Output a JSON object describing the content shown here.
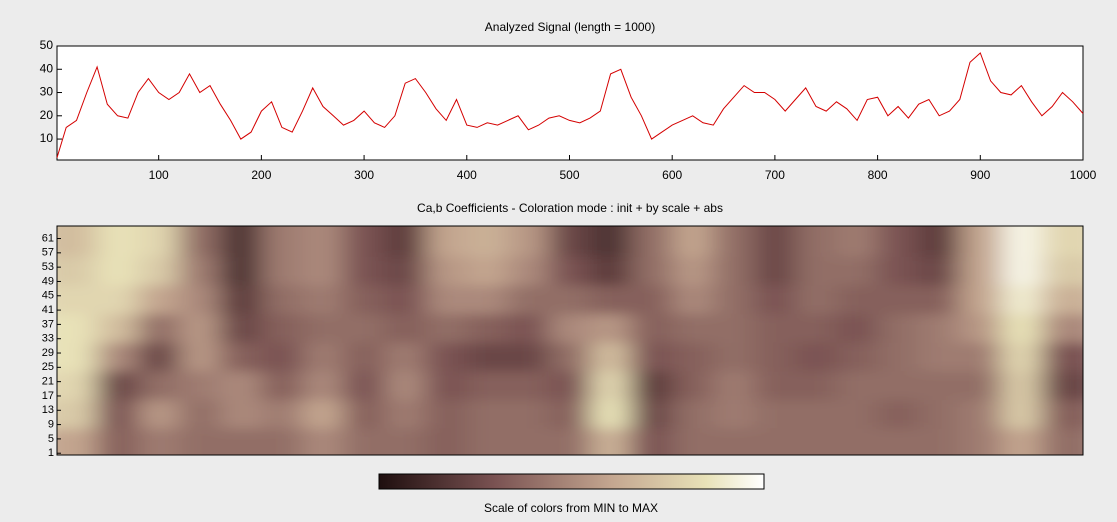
{
  "chart_data": [
    {
      "type": "line",
      "title": "Analyzed Signal  (length = 1000)",
      "x": [
        1,
        10,
        20,
        30,
        40,
        50,
        60,
        70,
        80,
        90,
        100,
        110,
        120,
        130,
        140,
        150,
        160,
        170,
        180,
        190,
        200,
        210,
        220,
        230,
        240,
        250,
        260,
        270,
        280,
        290,
        300,
        310,
        320,
        330,
        340,
        350,
        360,
        370,
        380,
        390,
        400,
        410,
        420,
        430,
        440,
        450,
        460,
        470,
        480,
        490,
        500,
        510,
        520,
        530,
        540,
        550,
        560,
        570,
        580,
        590,
        600,
        610,
        620,
        630,
        640,
        650,
        660,
        670,
        680,
        690,
        700,
        710,
        720,
        730,
        740,
        750,
        760,
        770,
        780,
        790,
        800,
        810,
        820,
        830,
        840,
        850,
        860,
        870,
        880,
        890,
        900,
        910,
        920,
        930,
        940,
        950,
        960,
        970,
        980,
        990,
        1000
      ],
      "series": [
        {
          "name": "Signal",
          "color": "#d40000",
          "values": [
            2,
            15,
            18,
            30,
            41,
            25,
            20,
            19,
            30,
            36,
            30,
            27,
            30,
            38,
            30,
            33,
            25,
            18,
            10,
            13,
            22,
            26,
            15,
            13,
            22,
            32,
            24,
            20,
            16,
            18,
            22,
            17,
            15,
            20,
            34,
            36,
            30,
            23,
            18,
            27,
            16,
            15,
            17,
            16,
            18,
            20,
            14,
            16,
            19,
            20,
            18,
            17,
            19,
            22,
            38,
            40,
            28,
            20,
            10,
            13,
            16,
            18,
            20,
            17,
            16,
            23,
            28,
            33,
            30,
            30,
            27,
            22,
            27,
            32,
            24,
            22,
            26,
            23,
            18,
            27,
            28,
            20,
            24,
            19,
            25,
            27,
            20,
            22,
            27,
            43,
            47,
            35,
            30,
            29,
            33,
            26,
            20,
            24,
            30,
            26,
            21
          ]
        }
      ],
      "xlim": [
        1,
        1000
      ],
      "xticks": [
        100,
        200,
        300,
        400,
        500,
        600,
        700,
        800,
        900,
        1000
      ],
      "ylim": [
        1,
        50
      ],
      "yticks": [
        10,
        20,
        30,
        40,
        50
      ]
    },
    {
      "type": "heatmap",
      "title": "Ca,b Coefficients  - Coloration mode : init + by scale + abs",
      "x": [
        20,
        60,
        100,
        140,
        180,
        220,
        260,
        300,
        340,
        380,
        420,
        460,
        500,
        540,
        580,
        620,
        660,
        700,
        740,
        780,
        820,
        860,
        900,
        940,
        980
      ],
      "y": [
        4,
        12,
        20,
        28,
        36,
        44,
        52,
        60
      ],
      "values": [
        [
          60,
          35,
          45,
          40,
          40,
          40,
          50,
          40,
          40,
          35,
          40,
          40,
          40,
          65,
          30,
          40,
          40,
          40,
          40,
          40,
          40,
          40,
          45,
          60,
          40
        ],
        [
          75,
          30,
          55,
          40,
          50,
          45,
          60,
          35,
          45,
          35,
          40,
          40,
          35,
          85,
          25,
          40,
          45,
          40,
          40,
          40,
          35,
          40,
          45,
          75,
          35
        ],
        [
          80,
          25,
          40,
          45,
          50,
          35,
          50,
          30,
          50,
          30,
          35,
          35,
          30,
          80,
          20,
          35,
          45,
          35,
          35,
          40,
          40,
          40,
          40,
          75,
          25
        ],
        [
          85,
          50,
          25,
          55,
          35,
          30,
          45,
          35,
          45,
          30,
          25,
          25,
          40,
          70,
          30,
          35,
          40,
          35,
          30,
          35,
          40,
          45,
          45,
          80,
          30
        ],
        [
          85,
          70,
          40,
          55,
          25,
          35,
          40,
          40,
          35,
          40,
          35,
          30,
          50,
          55,
          35,
          40,
          40,
          35,
          35,
          30,
          40,
          45,
          55,
          85,
          50
        ],
        [
          80,
          80,
          60,
          50,
          20,
          40,
          45,
          35,
          30,
          50,
          50,
          40,
          40,
          35,
          35,
          50,
          40,
          30,
          40,
          35,
          35,
          35,
          60,
          90,
          65
        ],
        [
          75,
          85,
          75,
          45,
          15,
          45,
          50,
          30,
          25,
          55,
          60,
          50,
          30,
          20,
          40,
          55,
          40,
          25,
          40,
          40,
          30,
          25,
          60,
          95,
          75
        ],
        [
          70,
          85,
          80,
          40,
          15,
          45,
          50,
          30,
          20,
          60,
          65,
          55,
          25,
          15,
          40,
          60,
          40,
          25,
          40,
          45,
          30,
          20,
          60,
          95,
          80
        ]
      ],
      "xlim": [
        1,
        1000
      ],
      "ylim": [
        0.5,
        64.5
      ],
      "yticks": [
        1,
        5,
        9,
        13,
        17,
        21,
        25,
        29,
        33,
        37,
        41,
        45,
        49,
        53,
        57,
        61
      ],
      "colorbar_label": "Scale of colors from MIN to MAX"
    }
  ]
}
